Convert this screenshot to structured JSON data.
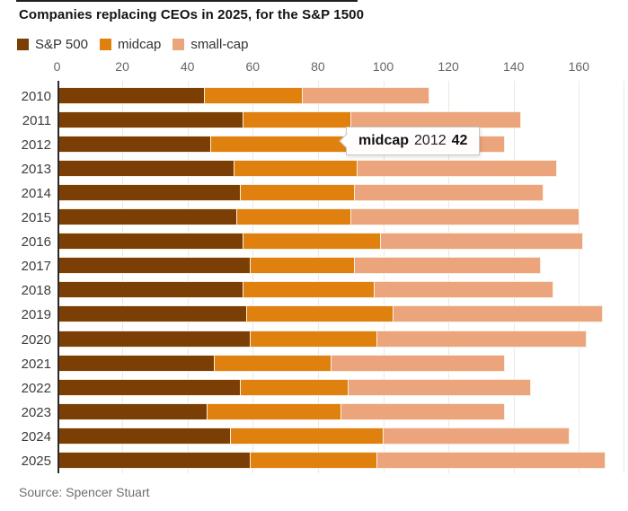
{
  "title": "Companies replacing CEOs in 2025, for the S&P 1500",
  "source": "Source: Spencer Stuart",
  "tooltip": {
    "series_label": "midcap",
    "year": "2012",
    "value": "42"
  },
  "colors": {
    "sp500": "#7b3e04",
    "midcap": "#e0810f",
    "smallcap": "#eca47c",
    "gridline": "#e8e8e4",
    "axis": "#2a2a2a"
  },
  "chart_data": {
    "type": "bar",
    "orientation": "horizontal",
    "stacked": true,
    "title": "Companies replacing CEOs in 2025, for the S&P 1500",
    "categories": [
      "2010",
      "2011",
      "2012",
      "2013",
      "2014",
      "2015",
      "2016",
      "2017",
      "2018",
      "2019",
      "2020",
      "2021",
      "2022",
      "2023",
      "2024",
      "2025"
    ],
    "series": [
      {
        "name": "S&P 500",
        "key": "sp500",
        "color": "#7b3e04",
        "values": [
          45,
          57,
          47,
          54,
          56,
          55,
          57,
          59,
          57,
          58,
          59,
          48,
          56,
          46,
          53,
          59
        ]
      },
      {
        "name": "midcap",
        "key": "midcap",
        "color": "#e0810f",
        "values": [
          30,
          33,
          42,
          38,
          35,
          35,
          42,
          32,
          40,
          45,
          39,
          36,
          33,
          41,
          47,
          39
        ]
      },
      {
        "name": "small-cap",
        "key": "smallcap",
        "color": "#eca47c",
        "values": [
          39,
          52,
          48,
          61,
          58,
          70,
          62,
          57,
          55,
          64,
          64,
          53,
          56,
          50,
          57,
          70
        ]
      }
    ],
    "totals": [
      114,
      142,
      137,
      153,
      149,
      160,
      161,
      148,
      152,
      167,
      162,
      137,
      145,
      137,
      157,
      168
    ],
    "xticks": [
      0,
      20,
      40,
      60,
      80,
      100,
      120,
      140,
      160
    ],
    "xlim": [
      0,
      175
    ],
    "xlabel": "",
    "ylabel": "",
    "grid": true,
    "legend_position": "top",
    "annotation": "midcap 2012 42"
  }
}
